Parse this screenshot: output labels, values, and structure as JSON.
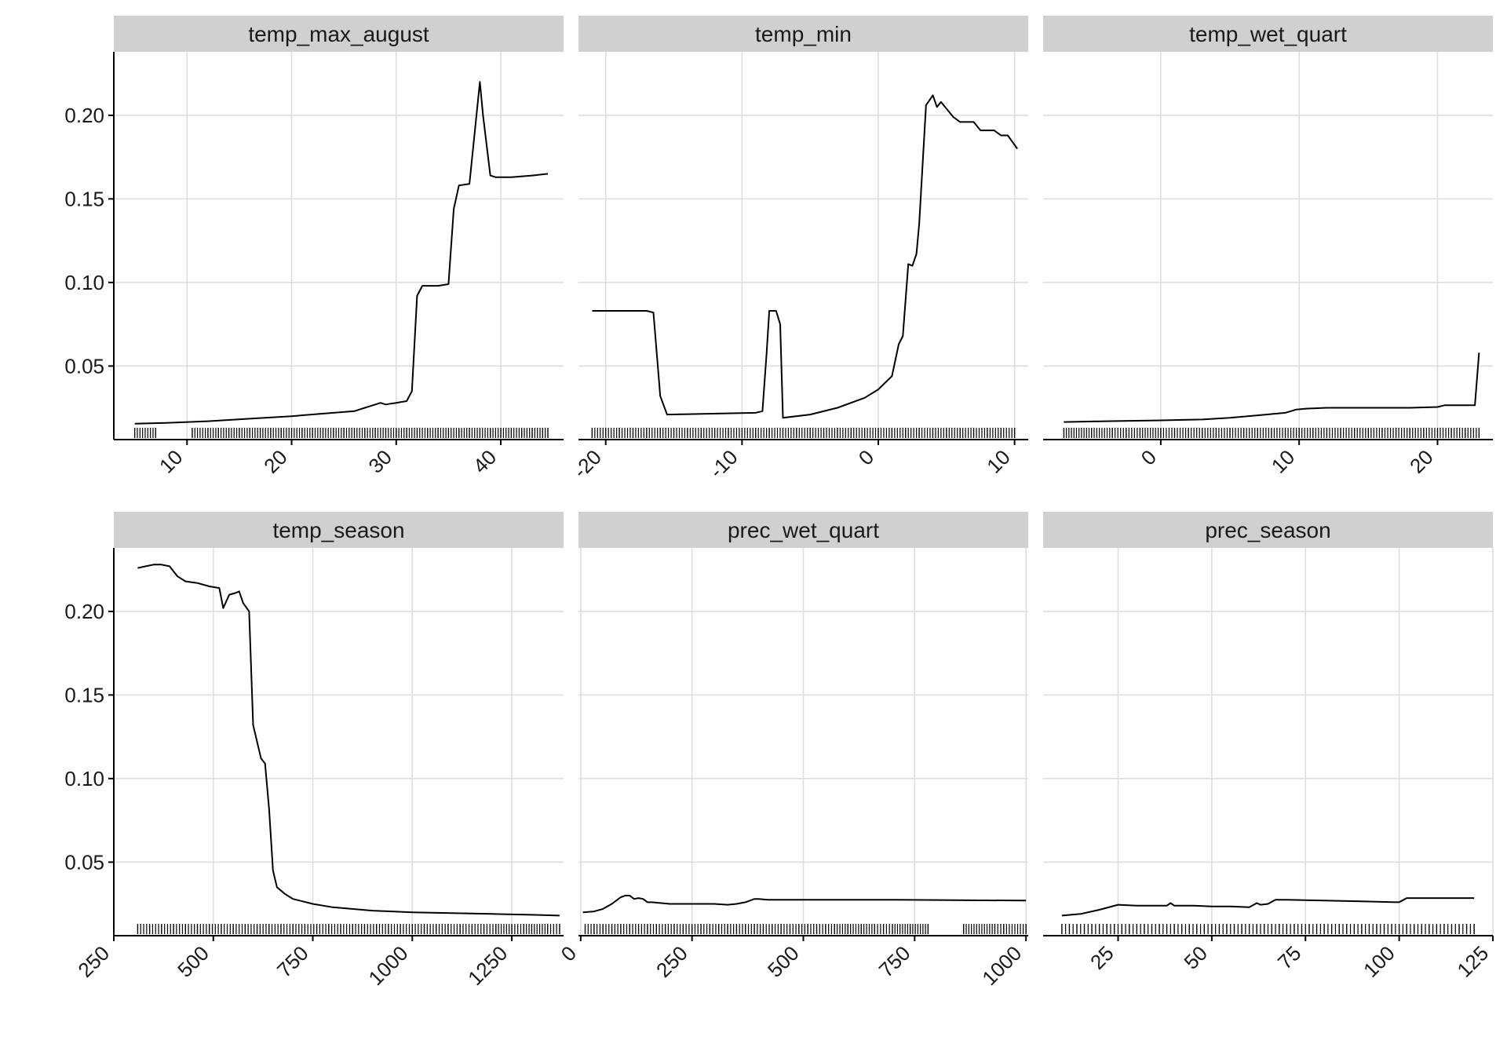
{
  "chart_data": [
    {
      "type": "line",
      "title": "temp_max_august",
      "xlim": [
        3,
        46
      ],
      "x_ticks": [
        10,
        20,
        30,
        40
      ],
      "ylim": [
        0.006,
        0.238
      ],
      "y_ticks": [
        0.05,
        0.1,
        0.15,
        0.2
      ],
      "y_tick_labels": [
        "0.05",
        "0.10",
        "0.15",
        "0.20"
      ],
      "rug_x": [
        5,
        7,
        10.5,
        12,
        13,
        14,
        15,
        16,
        17,
        18,
        19,
        20,
        21,
        22,
        23,
        24,
        25,
        26,
        27,
        28,
        29,
        30,
        31,
        32,
        33,
        34,
        35,
        36,
        37,
        38,
        39,
        40,
        41,
        42,
        43,
        44,
        44.5
      ],
      "series": [
        {
          "x": [
            5,
            8,
            12,
            16,
            20,
            24,
            26,
            27,
            27.5,
            28,
            28.5,
            29,
            29.5,
            30,
            31,
            31.5,
            32,
            32.5,
            33,
            34,
            35,
            35.5,
            36,
            37,
            38,
            38.3,
            39,
            39.5,
            41,
            43,
            44.5
          ],
          "y": [
            0.0155,
            0.016,
            0.017,
            0.0185,
            0.02,
            0.022,
            0.023,
            0.025,
            0.026,
            0.027,
            0.028,
            0.027,
            0.0275,
            0.028,
            0.029,
            0.035,
            0.092,
            0.098,
            0.098,
            0.098,
            0.099,
            0.144,
            0.158,
            0.159,
            0.22,
            0.2,
            0.164,
            0.163,
            0.163,
            0.164,
            0.165
          ]
        }
      ]
    },
    {
      "type": "line",
      "title": "temp_min",
      "xlim": [
        -22,
        11
      ],
      "x_ticks": [
        -20,
        -10,
        0,
        10
      ],
      "ylim": [
        0.006,
        0.238
      ],
      "y_ticks": [
        0.05,
        0.1,
        0.15,
        0.2
      ],
      "y_tick_labels": [
        "0.05",
        "0.10",
        "0.15",
        "0.20"
      ],
      "rug_x": [
        -21,
        -20,
        -19,
        -18,
        -17,
        -16,
        -15,
        -14,
        -13,
        -12,
        -11,
        -10,
        -9,
        -8,
        -7,
        -6,
        -5,
        -4,
        -3,
        -2,
        -1,
        0,
        1,
        2,
        3,
        4,
        5,
        6,
        7,
        8,
        9,
        10
      ],
      "series": [
        {
          "x": [
            -21,
            -17,
            -16.5,
            -16,
            -15.5,
            -9,
            -8.5,
            -8.2,
            -8,
            -7.5,
            -7.2,
            -7,
            -5,
            -3,
            -1,
            0,
            1,
            1.5,
            1.8,
            2.2,
            2.5,
            2.8,
            3,
            3.5,
            4,
            4.3,
            4.6,
            5,
            5.5,
            6,
            7,
            7.5,
            8,
            8.5,
            9,
            9.5,
            10.2
          ],
          "y": [
            0.083,
            0.083,
            0.082,
            0.032,
            0.021,
            0.022,
            0.023,
            0.057,
            0.083,
            0.083,
            0.075,
            0.019,
            0.021,
            0.025,
            0.031,
            0.036,
            0.044,
            0.063,
            0.068,
            0.111,
            0.11,
            0.117,
            0.135,
            0.206,
            0.212,
            0.205,
            0.208,
            0.204,
            0.199,
            0.196,
            0.196,
            0.191,
            0.191,
            0.191,
            0.188,
            0.188,
            0.18
          ]
        }
      ]
    },
    {
      "type": "line",
      "title": "temp_wet_quart",
      "xlim": [
        -8.5,
        24
      ],
      "x_ticks": [
        0,
        10,
        20
      ],
      "ylim": [
        0.006,
        0.238
      ],
      "y_ticks": [
        0.05,
        0.1,
        0.15,
        0.2
      ],
      "y_tick_labels": [
        "0.05",
        "0.10",
        "0.15",
        "0.20"
      ],
      "rug_x": [
        -7,
        -5,
        -3.5,
        -2.5,
        -1.5,
        0,
        1,
        2,
        3,
        4,
        5,
        6,
        7,
        8,
        9,
        10,
        11,
        12,
        13,
        14,
        15,
        16,
        17,
        18,
        19,
        20,
        21,
        22,
        23
      ],
      "series": [
        {
          "x": [
            -7,
            -4,
            0,
            3,
            5,
            7,
            9,
            9.8,
            10.5,
            12,
            14,
            16,
            18,
            20,
            20.5,
            22,
            22.7,
            23
          ],
          "y": [
            0.0165,
            0.017,
            0.0175,
            0.018,
            0.019,
            0.0205,
            0.022,
            0.024,
            0.0245,
            0.025,
            0.025,
            0.025,
            0.025,
            0.0255,
            0.0265,
            0.0265,
            0.0265,
            0.058
          ]
        }
      ]
    },
    {
      "type": "line",
      "title": "temp_season",
      "xlim": [
        250,
        1380
      ],
      "x_ticks": [
        250,
        500,
        750,
        1000,
        1250
      ],
      "ylim": [
        0.006,
        0.238
      ],
      "y_ticks": [
        0.05,
        0.1,
        0.15,
        0.2
      ],
      "y_tick_labels": [
        "0.05",
        "0.10",
        "0.15",
        "0.20"
      ],
      "rug_x": [
        310,
        340,
        370,
        400,
        430,
        460,
        490,
        520,
        550,
        580,
        610,
        640,
        670,
        700,
        730,
        760,
        790,
        820,
        850,
        880,
        910,
        940,
        970,
        1000,
        1030,
        1060,
        1090,
        1120,
        1150,
        1180,
        1210,
        1250,
        1280,
        1300,
        1340,
        1370
      ],
      "series": [
        {
          "x": [
            310,
            330,
            350,
            370,
            390,
            410,
            430,
            460,
            490,
            515,
            525,
            540,
            555,
            565,
            575,
            590,
            600,
            620,
            630,
            640,
            650,
            660,
            680,
            700,
            750,
            800,
            900,
            1000,
            1100,
            1200,
            1300,
            1370
          ],
          "y": [
            0.226,
            0.227,
            0.228,
            0.228,
            0.227,
            0.221,
            0.218,
            0.217,
            0.215,
            0.214,
            0.202,
            0.21,
            0.211,
            0.212,
            0.205,
            0.2,
            0.132,
            0.112,
            0.109,
            0.082,
            0.045,
            0.035,
            0.031,
            0.028,
            0.025,
            0.023,
            0.021,
            0.02,
            0.0195,
            0.019,
            0.0185,
            0.018
          ]
        }
      ]
    },
    {
      "type": "line",
      "title": "prec_wet_quart",
      "xlim": [
        -5,
        1005
      ],
      "x_ticks": [
        0,
        250,
        500,
        750,
        1000
      ],
      "ylim": [
        0.006,
        0.238
      ],
      "y_ticks": [
        0.05,
        0.1,
        0.15,
        0.2
      ],
      "y_tick_labels": [
        "0.05",
        "0.10",
        "0.15",
        "0.20"
      ],
      "rug_x": [
        10,
        30,
        50,
        70,
        90,
        110,
        130,
        150,
        170,
        190,
        210,
        230,
        250,
        270,
        290,
        310,
        330,
        350,
        370,
        390,
        410,
        430,
        450,
        470,
        490,
        510,
        530,
        550,
        570,
        600,
        630,
        660,
        680,
        700,
        740,
        780,
        860,
        930,
        950,
        1000
      ],
      "series": [
        {
          "x": [
            5,
            30,
            50,
            70,
            90,
            100,
            110,
            120,
            130,
            140,
            150,
            160,
            200,
            250,
            300,
            330,
            350,
            370,
            380,
            390,
            400,
            420,
            500,
            700,
            1000
          ],
          "y": [
            0.02,
            0.0205,
            0.022,
            0.025,
            0.029,
            0.03,
            0.03,
            0.028,
            0.0285,
            0.028,
            0.026,
            0.026,
            0.025,
            0.025,
            0.025,
            0.0245,
            0.025,
            0.026,
            0.027,
            0.028,
            0.028,
            0.0275,
            0.0275,
            0.0275,
            0.027
          ]
        }
      ]
    },
    {
      "type": "line",
      "title": "prec_season",
      "xlim": [
        5,
        125
      ],
      "x_ticks": [
        25,
        50,
        75,
        100,
        125
      ],
      "ylim": [
        0.006,
        0.238
      ],
      "y_ticks": [
        0.05,
        0.1,
        0.15,
        0.2
      ],
      "y_tick_labels": [
        "0.05",
        "0.10",
        "0.15",
        "0.20"
      ],
      "rug_x": [
        10,
        12,
        14,
        16,
        18,
        20,
        22,
        24,
        26,
        28,
        30,
        32,
        34,
        36,
        38,
        40,
        42,
        44,
        46,
        48,
        50,
        52,
        54,
        56,
        58,
        60,
        62,
        64,
        66,
        68,
        70,
        72,
        74,
        76,
        78,
        80,
        82,
        84,
        86,
        88,
        90,
        92,
        94,
        96,
        98,
        100,
        102,
        104,
        106,
        108,
        110,
        112,
        114,
        116,
        118,
        120
      ],
      "series": [
        {
          "x": [
            10,
            15,
            20,
            25,
            30,
            35,
            38,
            39,
            40,
            45,
            50,
            55,
            60,
            62,
            63,
            65,
            67,
            70,
            80,
            90,
            100,
            102,
            105,
            110,
            120
          ],
          "y": [
            0.018,
            0.019,
            0.0215,
            0.0245,
            0.024,
            0.024,
            0.024,
            0.0255,
            0.024,
            0.024,
            0.0235,
            0.0235,
            0.023,
            0.0255,
            0.0245,
            0.025,
            0.0275,
            0.0275,
            0.027,
            0.0265,
            0.026,
            0.0285,
            0.0285,
            0.0285,
            0.0285
          ]
        }
      ]
    }
  ]
}
